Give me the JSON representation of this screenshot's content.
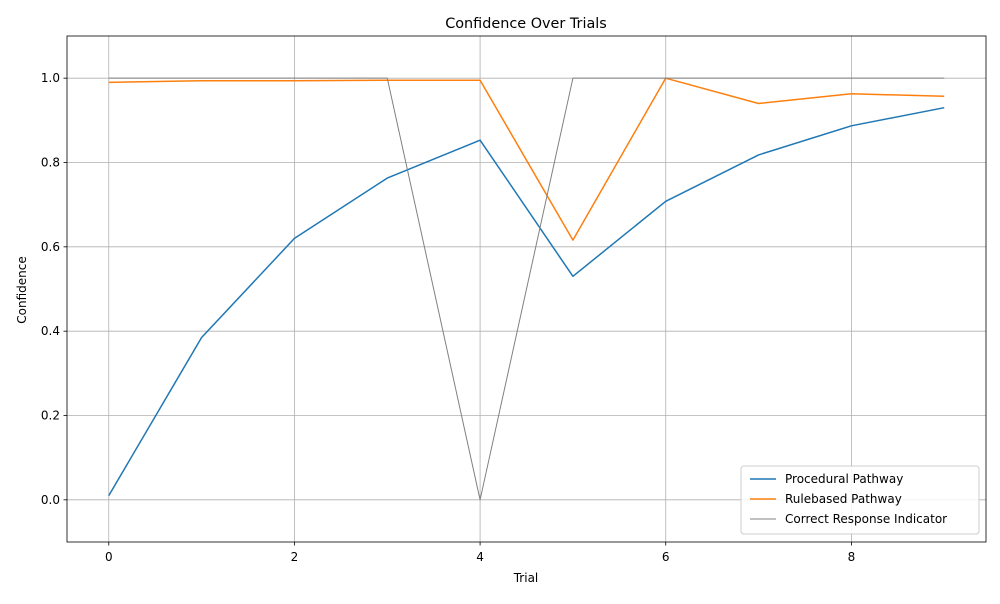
{
  "chart_data": {
    "type": "line",
    "title": "Confidence Over Trials",
    "xlabel": "Trial",
    "ylabel": "Confidence",
    "xlim": [
      -0.45,
      9.45
    ],
    "ylim": [
      -0.1,
      1.1
    ],
    "xticks": [
      0,
      2,
      4,
      6,
      8
    ],
    "yticks": [
      0.0,
      0.2,
      0.4,
      0.6,
      0.8,
      1.0
    ],
    "xtick_labels": [
      "0",
      "2",
      "4",
      "6",
      "8"
    ],
    "ytick_labels": [
      "0.0",
      "0.2",
      "0.4",
      "0.6",
      "0.8",
      "1.0"
    ],
    "grid": true,
    "legend_position": "lower-right",
    "x": [
      0,
      1,
      2,
      3,
      4,
      5,
      6,
      7,
      8,
      9
    ],
    "series": [
      {
        "name": "Procedural Pathway",
        "color": "#1f77b4",
        "values": [
          0.01,
          0.385,
          0.62,
          0.763,
          0.853,
          0.53,
          0.708,
          0.818,
          0.887,
          0.93
        ]
      },
      {
        "name": "Rulebased Pathway",
        "color": "#ff7f0e",
        "values": [
          0.99,
          0.994,
          0.994,
          0.995,
          0.995,
          0.616,
          1.0,
          0.94,
          0.963,
          0.957
        ]
      },
      {
        "name": "Correct Response Indicator",
        "color": "#808080",
        "values": [
          1,
          1,
          1,
          1,
          0,
          1,
          1,
          1,
          1,
          1
        ]
      }
    ]
  }
}
